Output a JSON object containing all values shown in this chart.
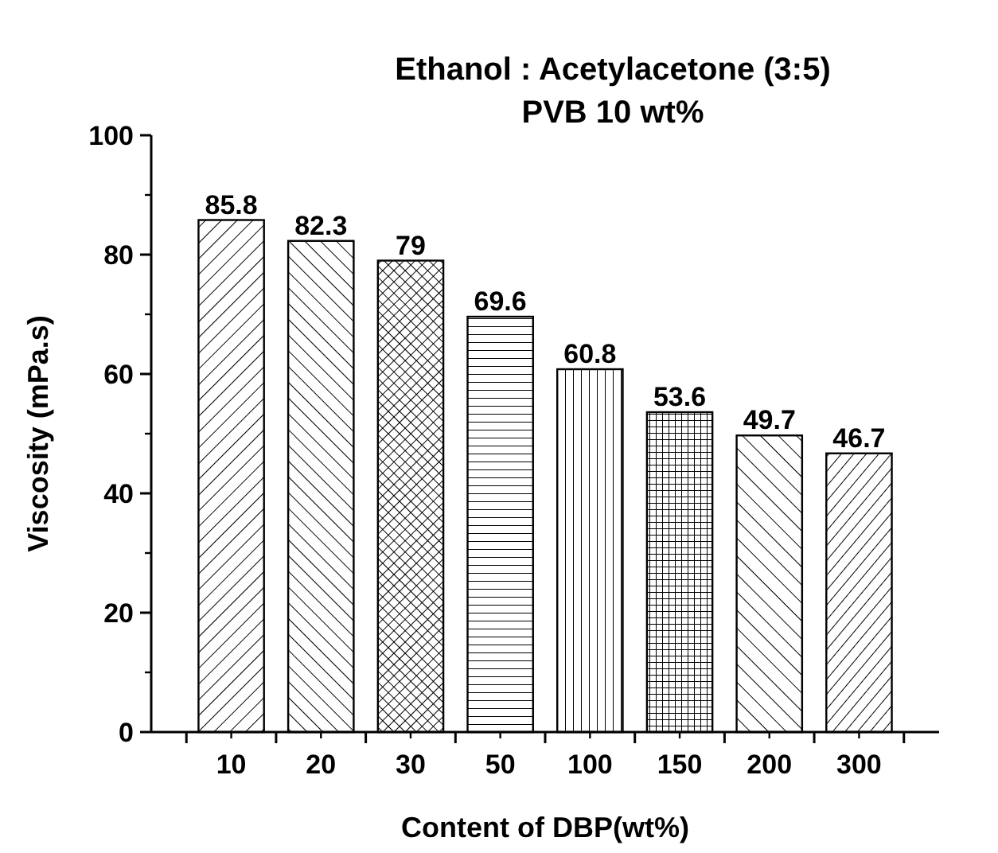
{
  "chart_data": {
    "type": "bar",
    "title": "Ethanol : Acetylacetone (3:5)",
    "subtitle": "PVB 10 wt%",
    "xlabel": "Content of DBP(wt%)",
    "ylabel": "Viscosity (mPa.s)",
    "categories": [
      "10",
      "20",
      "30",
      "50",
      "100",
      "150",
      "200",
      "300"
    ],
    "values": [
      85.8,
      82.3,
      79,
      69.6,
      60.8,
      53.6,
      49.7,
      46.7
    ],
    "ylim": [
      0,
      100
    ],
    "yticks": [
      0,
      20,
      40,
      60,
      80,
      100
    ],
    "data_labels": true
  }
}
